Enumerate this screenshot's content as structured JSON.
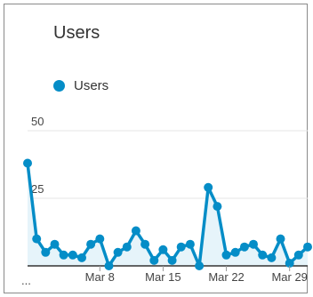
{
  "card": {
    "title": "Users"
  },
  "legend": {
    "label": "Users",
    "color": "#058dc7"
  },
  "colors": {
    "line": "#058dc7",
    "area": "#e6f4fa",
    "grid": "#e6e6e6",
    "axis": "#333333"
  },
  "chart_data": {
    "type": "area",
    "title": "Users",
    "series": [
      {
        "name": "Users",
        "values": [
          38,
          10,
          5,
          8,
          4,
          4,
          3,
          8,
          10,
          0,
          5,
          7,
          13,
          8,
          2,
          6,
          2,
          7,
          8,
          0,
          29,
          22,
          4,
          5,
          7,
          8,
          4,
          3,
          10,
          1,
          4,
          7
        ]
      }
    ],
    "y_ticks": [
      "50",
      "25"
    ],
    "ylim": [
      0,
      50
    ],
    "x_ticks": [
      {
        "index": 8,
        "label": "Mar 8"
      },
      {
        "index": 15,
        "label": "Mar 15"
      },
      {
        "index": 22,
        "label": "Mar 22"
      },
      {
        "index": 29,
        "label": "Mar 29"
      }
    ],
    "x_start_label": "...",
    "grid": true
  }
}
